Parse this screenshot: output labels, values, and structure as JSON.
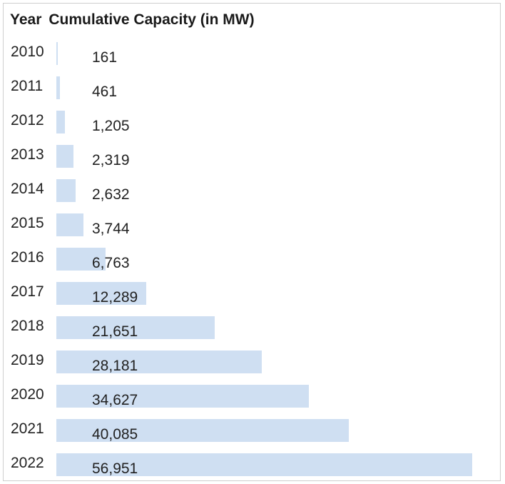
{
  "header": {
    "col1": "Year",
    "col2": "Cumulative Capacity (in MW)"
  },
  "chart_data": {
    "type": "bar",
    "orientation": "horizontal",
    "xlabel": "Cumulative Capacity (in MW)",
    "ylabel": "Year",
    "categories": [
      "2010",
      "2011",
      "2012",
      "2013",
      "2014",
      "2015",
      "2016",
      "2017",
      "2018",
      "2019",
      "2020",
      "2021",
      "2022"
    ],
    "values": [
      161,
      461,
      1205,
      2319,
      2632,
      3744,
      6763,
      12289,
      21651,
      28181,
      34627,
      40085,
      56951
    ],
    "value_labels": [
      "161",
      "461",
      "1,205",
      "2,319",
      "2,632",
      "3,744",
      "6,763",
      "12,289",
      "21,651",
      "28,181",
      "34,627",
      "40,085",
      "56,951"
    ],
    "xlim": [
      0,
      56951
    ],
    "bar_color": "#cfdff2",
    "grid": false
  }
}
